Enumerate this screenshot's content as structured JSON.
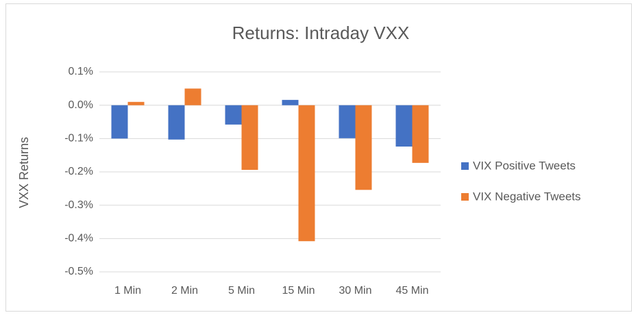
{
  "chart_data": {
    "type": "bar",
    "title": "Returns: Intraday VXX",
    "y_label": "VXX Returns",
    "categories": [
      "1 Min",
      "2 Min",
      "5 Min",
      "15 Min",
      "30 Min",
      "45 Min"
    ],
    "series": [
      {
        "name": "VIX Positive Tweets",
        "color": "#4472c4",
        "values": [
          -0.1,
          -0.103,
          -0.058,
          0.016,
          -0.099,
          -0.124
        ]
      },
      {
        "name": "VIX Negative Tweets",
        "color": "#ed7d31",
        "values": [
          0.01,
          0.05,
          -0.194,
          -0.408,
          -0.254,
          -0.173
        ]
      }
    ],
    "ylim": [
      -0.5,
      0.1
    ],
    "yticks": [
      {
        "value": -0.5,
        "label": "-0.5%"
      },
      {
        "value": -0.4,
        "label": "-0.4%"
      },
      {
        "value": -0.3,
        "label": "-0.3%"
      },
      {
        "value": -0.2,
        "label": "-0.2%"
      },
      {
        "value": -0.1,
        "label": "-0.1%"
      },
      {
        "value": 0,
        "label": "0.0%"
      },
      {
        "value": 0.1,
        "label": "0.1%"
      }
    ],
    "grid": true,
    "legend": "right"
  }
}
